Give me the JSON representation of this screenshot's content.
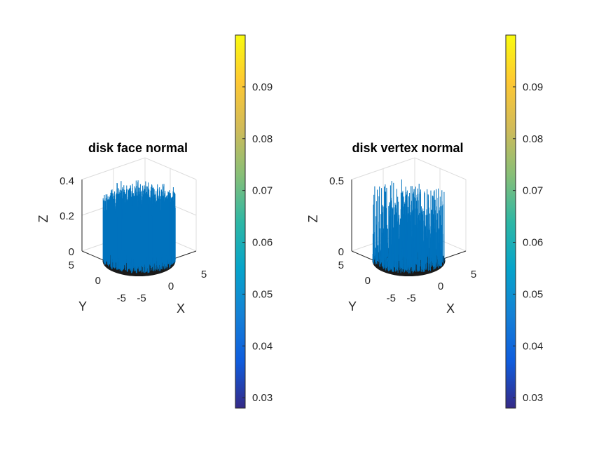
{
  "chart_data": [
    {
      "type": "3d-quiver",
      "title": "disk face normal",
      "xlabel": "X",
      "ylabel": "Y",
      "zlabel": "Z",
      "xticks": [
        "-5",
        "0",
        "5"
      ],
      "yticks": [
        "-5",
        "0",
        "5"
      ],
      "zticks": [
        "0",
        "0.2",
        "0.4"
      ],
      "xlim": [
        -5,
        5
      ],
      "ylim": [
        -5,
        5
      ],
      "zlim": [
        0,
        0.4
      ],
      "disk_radius": 5,
      "normal_length_range": [
        0.15,
        0.4
      ],
      "color": "#0072BD",
      "colorbar": {
        "colormap": "parula",
        "range": [
          0.028,
          0.1
        ],
        "ticks": [
          "0.03",
          "0.04",
          "0.05",
          "0.06",
          "0.07",
          "0.08",
          "0.09"
        ]
      }
    },
    {
      "type": "3d-quiver",
      "title": "disk vertex normal",
      "xlabel": "X",
      "ylabel": "Y",
      "zlabel": "Z",
      "xticks": [
        "-5",
        "0",
        "5"
      ],
      "yticks": [
        "-5",
        "0",
        "5"
      ],
      "zticks": [
        "0",
        "0.5"
      ],
      "xlim": [
        -5,
        5
      ],
      "ylim": [
        -5,
        5
      ],
      "zlim": [
        0,
        0.5
      ],
      "disk_radius": 5,
      "normal_length_range": [
        0.05,
        0.5
      ],
      "color": "#0072BD",
      "colorbar": {
        "colormap": "parula",
        "range": [
          0.028,
          0.1
        ],
        "ticks": [
          "0.03",
          "0.04",
          "0.05",
          "0.06",
          "0.07",
          "0.08",
          "0.09"
        ]
      }
    }
  ]
}
